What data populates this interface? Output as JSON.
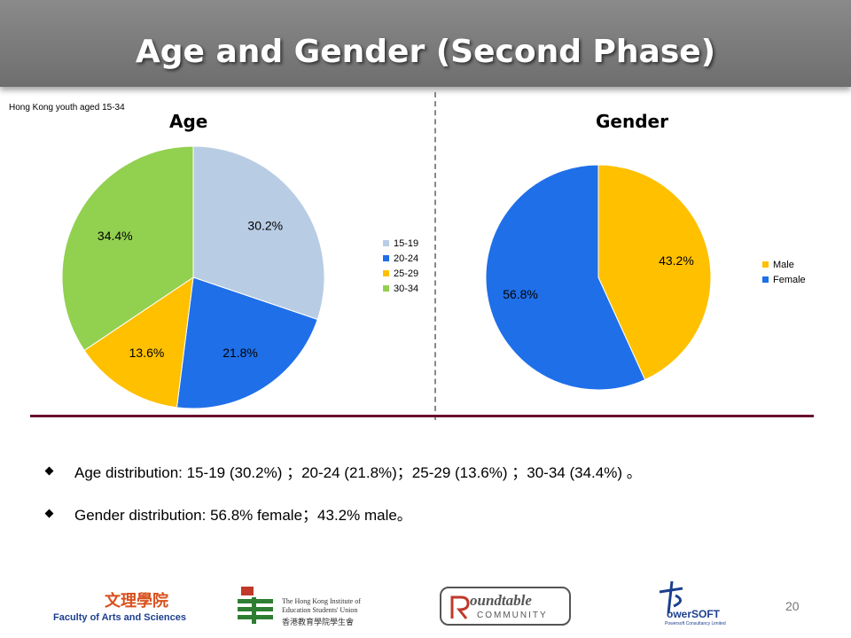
{
  "header": {
    "title": "Age and Gender (Second Phase)"
  },
  "note": "Hong Kong youth aged 15-34",
  "chart_data": [
    {
      "type": "pie",
      "title": "Age",
      "categories": [
        "15-19",
        "20-24",
        "25-29",
        "30-34"
      ],
      "values": [
        30.2,
        21.8,
        13.6,
        34.4
      ],
      "labels": [
        "30.2%",
        "21.8%",
        "13.6%",
        "34.4%"
      ],
      "colors": [
        "#b8cce4",
        "#1f6fe8",
        "#ffc000",
        "#92d050"
      ],
      "legend": "right"
    },
    {
      "type": "pie",
      "title": "Gender",
      "categories": [
        "Male",
        "Female"
      ],
      "values": [
        43.2,
        56.8
      ],
      "labels": [
        "43.2%",
        "56.8%"
      ],
      "colors": [
        "#ffc000",
        "#1f6fe8"
      ],
      "legend": "right"
    }
  ],
  "bullets": [
    "Age distribution: 15-19 (30.2%) ；20-24 (21.8%)；25-29 (13.6%) ；30-34 (34.4%) 。",
    "Gender distribution: 56.8% female；43.2% male。"
  ],
  "footer": {
    "page_number": "20",
    "logos": {
      "faculty_chinese": "文理學院",
      "faculty": "Faculty of Arts and Sciences",
      "institute_line1": "The Hong Kong Institute of",
      "institute_line2": "Education Students' Union",
      "institute_chinese": "香港教育學院學生會",
      "roundtable": "oundtable",
      "roundtable_sub": "COMMUNITY",
      "powersoft": "owerSOFT",
      "powersoft_sub": "Powersoft Consultancy Limited"
    }
  }
}
